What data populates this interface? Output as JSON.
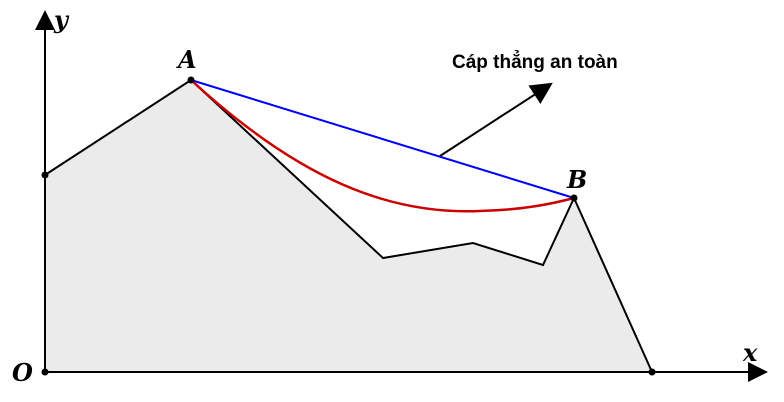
{
  "labels": {
    "y_axis": "y",
    "x_axis": "x",
    "origin": "O",
    "point_a": "A",
    "point_b": "B",
    "annotation": "Cáp thẳng an toàn"
  },
  "colors": {
    "terrain_fill": "#ebebeb",
    "outline": "#000000",
    "straight_cable": "#0000ff",
    "sagging_cable": "#cc0000"
  }
}
